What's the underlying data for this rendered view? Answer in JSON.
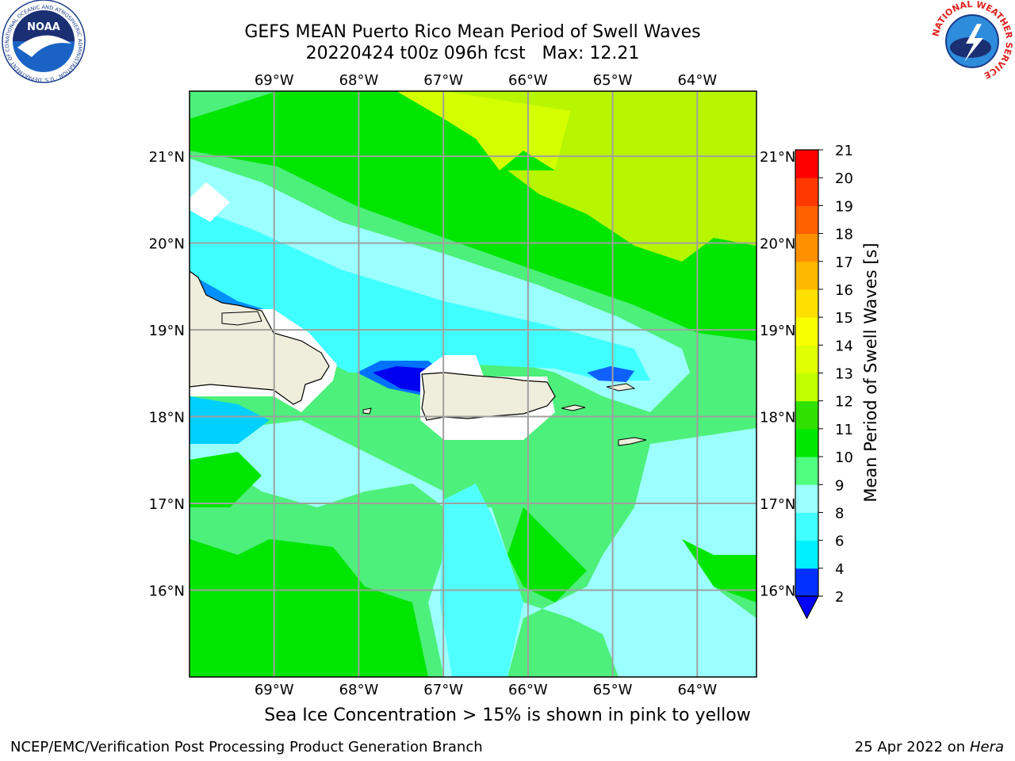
{
  "title": {
    "line1": "GEFS MEAN Puerto Rico Mean Period of Swell Waves",
    "line2": "20220424 t00z 096h fcst   Max: 12.21"
  },
  "map": {
    "lon_labels": [
      "69°W",
      "68°W",
      "67°W",
      "66°W",
      "65°W",
      "64°W"
    ],
    "lat_labels": [
      "21°N",
      "20°N",
      "19°N",
      "18°N",
      "17°N",
      "16°N"
    ],
    "lon_values": [
      -69,
      -68,
      -67,
      -66,
      -65,
      -64
    ],
    "lat_values": [
      21,
      20,
      19,
      18,
      17,
      16
    ],
    "extent": {
      "lon_min": -70,
      "lon_max": -63.3,
      "lat_min": 15,
      "lat_max": 21.75
    }
  },
  "colorbar": {
    "label": "Mean Period of Swell Waves [s]",
    "ticks": [
      "2",
      "4",
      "6",
      "8",
      "9",
      "10",
      "11",
      "12",
      "13",
      "14",
      "15",
      "16",
      "17",
      "18",
      "19",
      "20",
      "21"
    ],
    "colors": [
      "#0030ff",
      "#00f0ff",
      "#40ffff",
      "#9cffff",
      "#50ff80",
      "#00e800",
      "#30e000",
      "#bfff00",
      "#e0ff00",
      "#f8ff00",
      "#ffe000",
      "#ffb800",
      "#ff9000",
      "#ff6000",
      "#ff3800",
      "#ff0000"
    ],
    "under_color": "#0000ff"
  },
  "note": "Sea Ice Concentration > 15% is shown in pink to yellow",
  "footer": {
    "left": "NCEP/EMC/Verification Post Processing Product Generation Branch",
    "date": "25 Apr 2022 on ",
    "machine": "Hera"
  },
  "logos": {
    "noaa_text": "NOAA",
    "noaa_ring": "NATIONAL OCEANIC AND ATMOSPHERIC ADMINISTRATION · U.S. DEPARTMENT OF COMMERCE",
    "nws_ring": "NATIONAL WEATHER SERVICE"
  },
  "colors": {
    "land": "#efeddb",
    "ocean_base": "#4df07a"
  }
}
